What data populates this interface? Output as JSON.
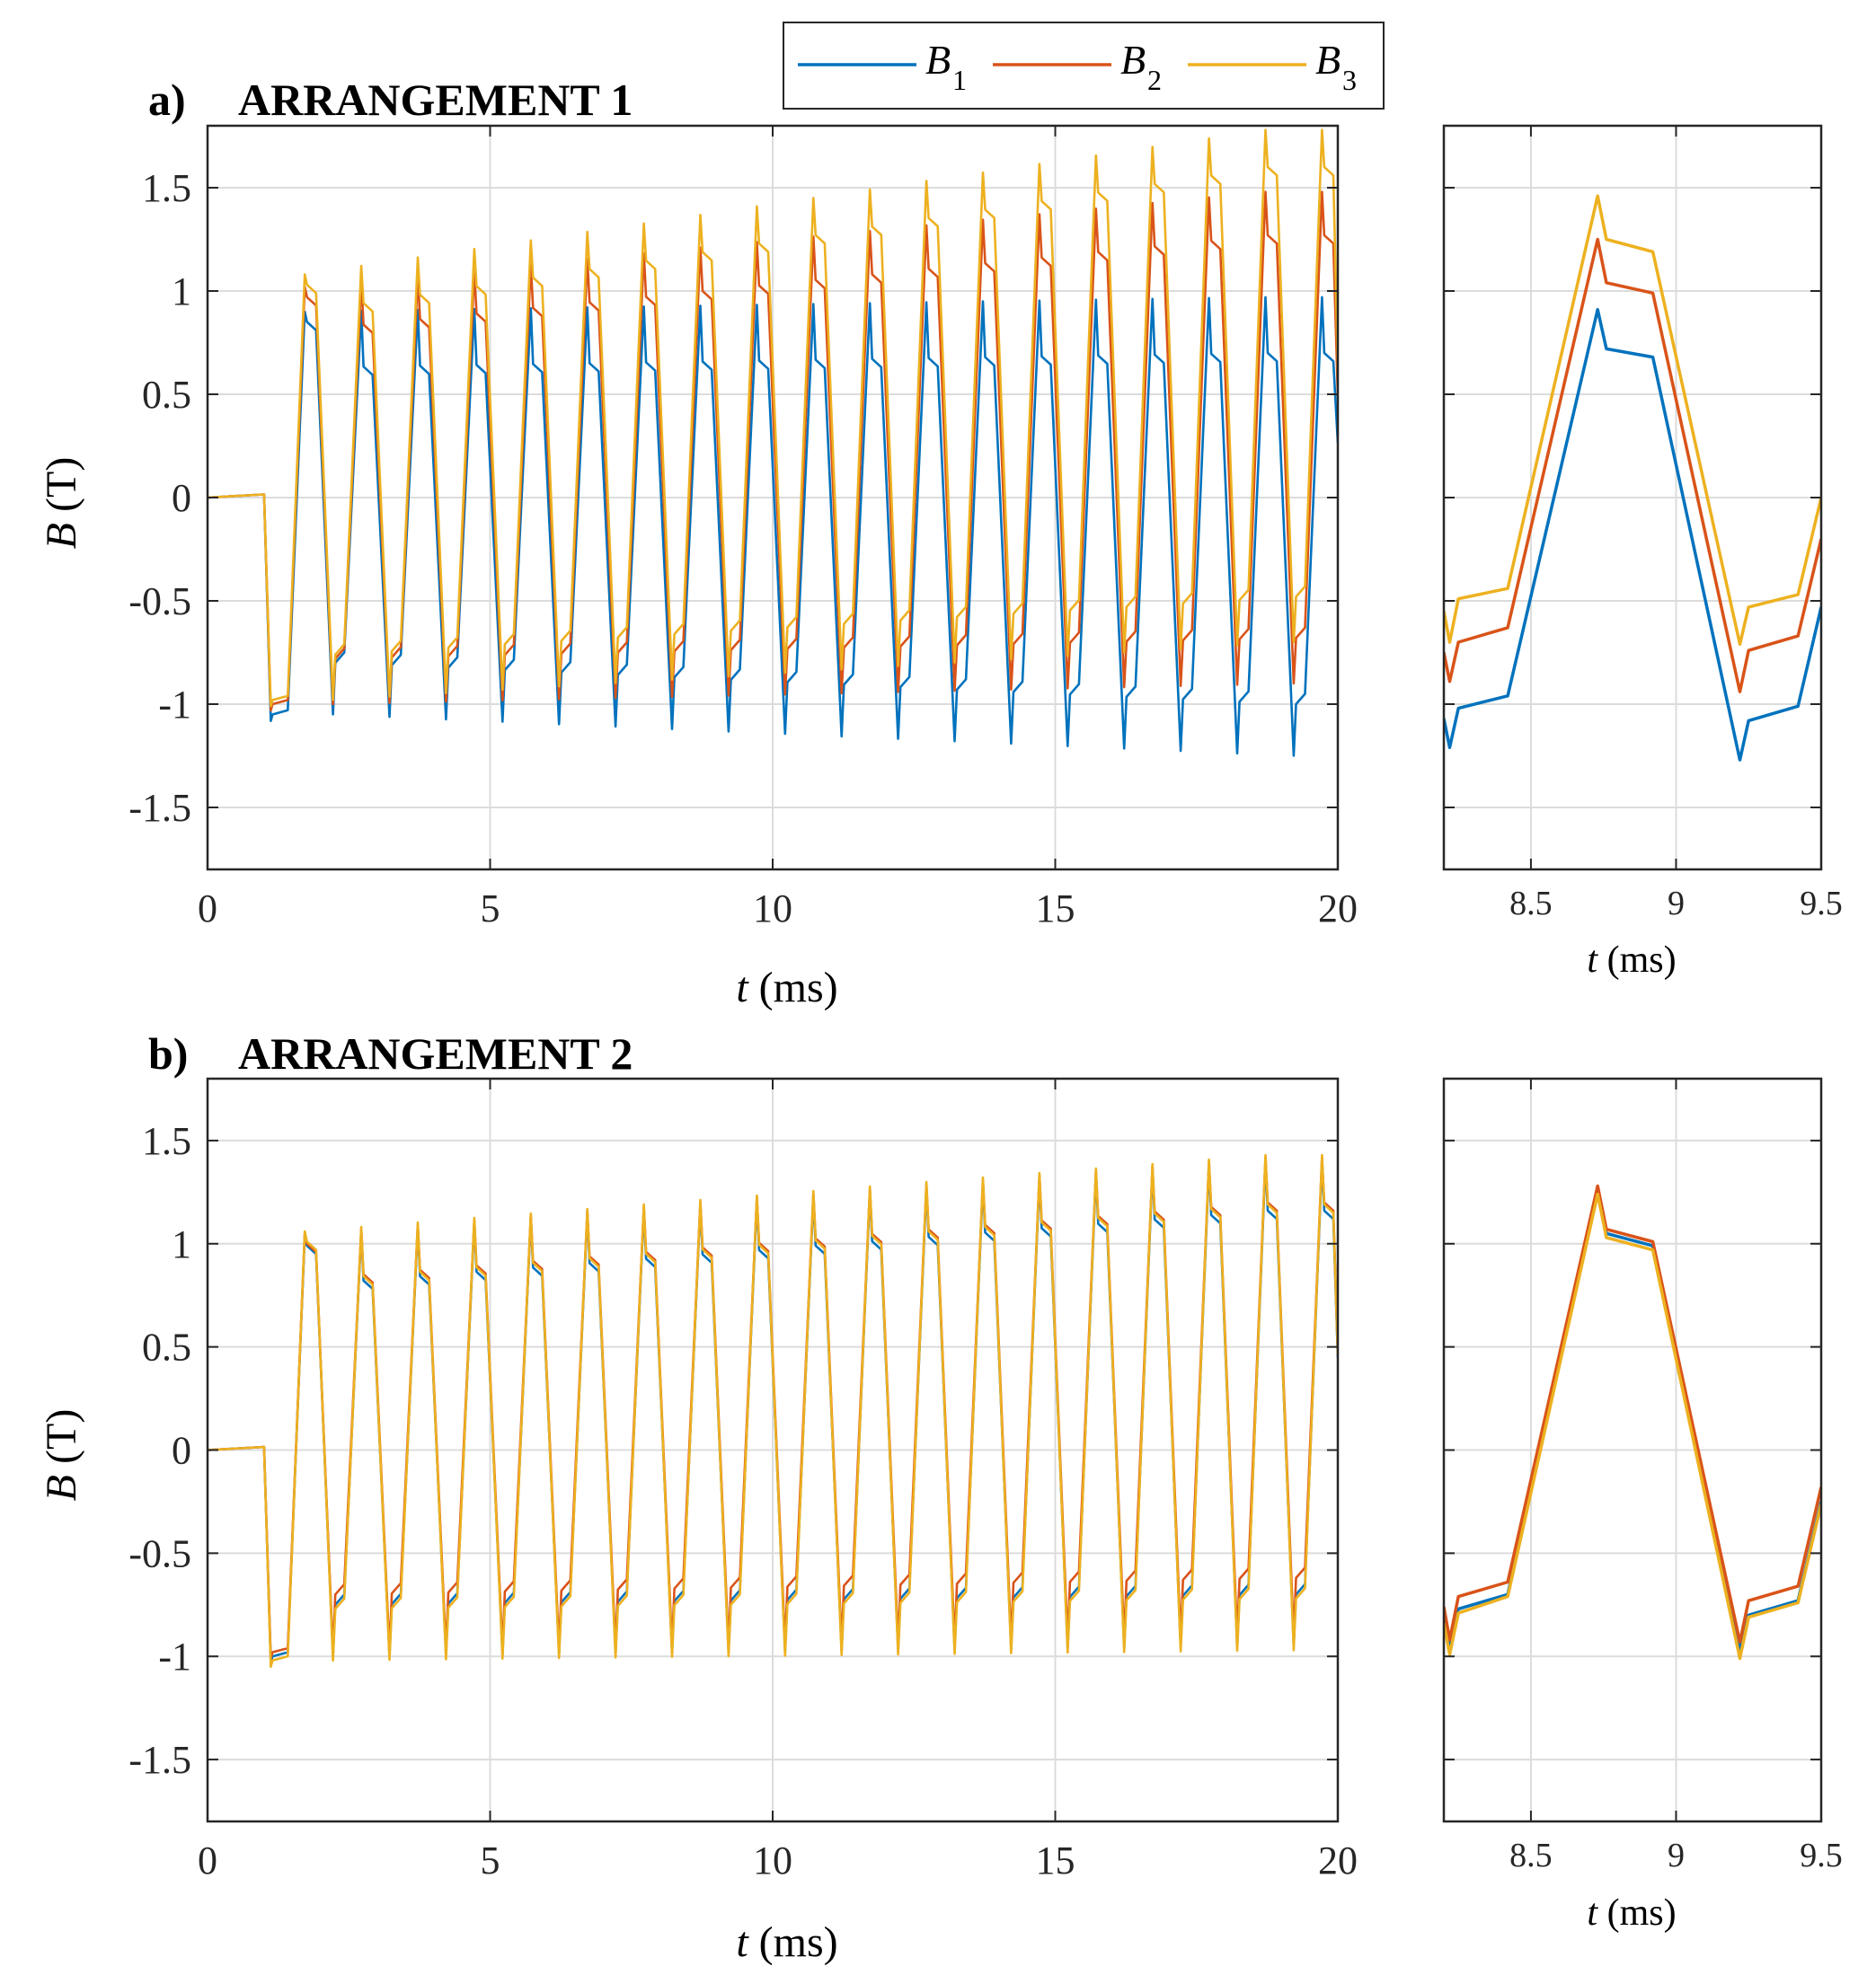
{
  "legend": {
    "entries": [
      {
        "symbol": "B",
        "subscript": "1",
        "color": "#0072BD"
      },
      {
        "symbol": "B",
        "subscript": "2",
        "color": "#D95319"
      },
      {
        "symbol": "B",
        "subscript": "3",
        "color": "#EDB120"
      }
    ]
  },
  "chart_data": [
    {
      "type": "line",
      "panel": "a-main",
      "title_prefix": "a)",
      "title": "ARRANGEMENT 1",
      "xlabel_var": "t",
      "xlabel_unit": " (ms)",
      "ylabel_var": "B",
      "ylabel_unit": " (T)",
      "xlim": [
        0,
        20
      ],
      "ylim": [
        -1.8,
        1.8
      ],
      "xticks": [
        0,
        5,
        10,
        15,
        20
      ],
      "xtick_labels": [
        "0",
        "5",
        "10",
        "15",
        "20"
      ],
      "yticks": [
        1.5,
        1,
        0.5,
        0,
        -0.5,
        -1,
        -1.5
      ],
      "ytick_labels": [
        "1.5",
        "1",
        "0.5",
        "0",
        "-0.5",
        "-1",
        "-1.5"
      ],
      "grid": true,
      "series_model": {
        "period_ms": 1.0,
        "first_rise_ms": 1.72,
        "pos_peak_start": [
          0.9,
          1.02,
          1.08
        ],
        "pos_peak_end": [
          0.97,
          1.48,
          1.78
        ],
        "neg_peak_start": [
          -1.05,
          -1.0,
          -0.98
        ],
        "neg_peak_end": [
          -1.25,
          -0.9,
          -0.7
        ],
        "pos_plateau_offset": [
          -0.27,
          -0.21,
          -0.18
        ],
        "neg_plateau_offset": [
          0.25,
          0.22,
          0.22
        ]
      },
      "series": [
        {
          "name": "B1",
          "color": "#0072BD"
        },
        {
          "name": "B2",
          "color": "#D95319"
        },
        {
          "name": "B3",
          "color": "#EDB120"
        }
      ]
    },
    {
      "type": "line",
      "panel": "a-zoom",
      "xlabel_var": "t",
      "xlabel_unit": " (ms)",
      "xlim": [
        8.2,
        9.5
      ],
      "ylim": [
        -1.8,
        1.8
      ],
      "xticks": [
        8.5,
        9,
        9.5
      ],
      "xtick_labels": [
        "8.5",
        "9",
        "9.5"
      ],
      "yticks": [
        1.5,
        1,
        0.5,
        0,
        -0.5,
        -1,
        -1.5
      ],
      "grid": true,
      "series": [
        {
          "name": "B1",
          "color": "#0072BD",
          "x": [
            8.2,
            8.22,
            8.25,
            8.42,
            8.73,
            8.76,
            8.92,
            9.22,
            9.25,
            9.42,
            9.5
          ],
          "y": [
            -1.07,
            -1.21,
            -1.02,
            -0.96,
            0.91,
            0.72,
            0.68,
            -1.27,
            -1.08,
            -1.01,
            -0.53
          ]
        },
        {
          "name": "B2",
          "color": "#D95319",
          "x": [
            8.2,
            8.22,
            8.25,
            8.42,
            8.73,
            8.76,
            8.92,
            9.22,
            9.25,
            9.42,
            9.5
          ],
          "y": [
            -0.75,
            -0.89,
            -0.7,
            -0.63,
            1.25,
            1.04,
            0.99,
            -0.94,
            -0.74,
            -0.67,
            -0.2
          ]
        },
        {
          "name": "B3",
          "color": "#EDB120",
          "x": [
            8.2,
            8.22,
            8.25,
            8.42,
            8.73,
            8.76,
            8.92,
            9.22,
            9.25,
            9.42,
            9.5
          ],
          "y": [
            -0.55,
            -0.7,
            -0.49,
            -0.44,
            1.46,
            1.25,
            1.19,
            -0.71,
            -0.53,
            -0.47,
            0.0
          ]
        }
      ]
    },
    {
      "type": "line",
      "panel": "b-main",
      "title_prefix": "b)",
      "title": "ARRANGEMENT 2",
      "xlabel_var": "t",
      "xlabel_unit": " (ms)",
      "ylabel_var": "B",
      "ylabel_unit": " (T)",
      "xlim": [
        0,
        20
      ],
      "ylim": [
        -1.8,
        1.8
      ],
      "xticks": [
        0,
        5,
        10,
        15,
        20
      ],
      "xtick_labels": [
        "0",
        "5",
        "10",
        "15",
        "20"
      ],
      "yticks": [
        1.5,
        1,
        0.5,
        0,
        -0.5,
        -1,
        -1.5
      ],
      "ytick_labels": [
        "1.5",
        "1",
        "0.5",
        "0",
        "-0.5",
        "-1",
        "-1.5"
      ],
      "grid": true,
      "series_model": {
        "period_ms": 1.0,
        "first_rise_ms": 1.72,
        "pos_peak_start": [
          1.04,
          1.05,
          1.06
        ],
        "pos_peak_end": [
          1.4,
          1.42,
          1.43
        ],
        "neg_peak_start": [
          -1.0,
          -0.98,
          -1.02
        ],
        "neg_peak_end": [
          -0.95,
          -0.9,
          -0.97
        ],
        "pos_plateau_offset": [
          -0.24,
          -0.22,
          -0.24
        ],
        "neg_plateau_offset": [
          0.25,
          0.28,
          0.25
        ]
      },
      "series": [
        {
          "name": "B1",
          "color": "#0072BD"
        },
        {
          "name": "B2",
          "color": "#D95319"
        },
        {
          "name": "B3",
          "color": "#EDB120"
        }
      ]
    },
    {
      "type": "line",
      "panel": "b-zoom",
      "xlabel_var": "t",
      "xlabel_unit": " (ms)",
      "xlim": [
        8.2,
        9.5
      ],
      "ylim": [
        -1.8,
        1.8
      ],
      "xticks": [
        8.5,
        9,
        9.5
      ],
      "xtick_labels": [
        "8.5",
        "9",
        "9.5"
      ],
      "yticks": [
        1.5,
        1,
        0.5,
        0,
        -0.5,
        -1,
        -1.5
      ],
      "grid": true,
      "series": [
        {
          "name": "B1",
          "color": "#0072BD",
          "x": [
            8.2,
            8.22,
            8.25,
            8.42,
            8.73,
            8.76,
            8.92,
            9.22,
            9.25,
            9.42,
            9.5
          ],
          "y": [
            -0.82,
            -0.96,
            -0.77,
            -0.7,
            1.26,
            1.05,
            0.99,
            -0.97,
            -0.8,
            -0.73,
            -0.25
          ]
        },
        {
          "name": "B2",
          "color": "#D95319",
          "x": [
            8.2,
            8.22,
            8.25,
            8.42,
            8.73,
            8.76,
            8.92,
            9.22,
            9.25,
            9.42,
            9.5
          ],
          "y": [
            -0.76,
            -0.92,
            -0.71,
            -0.64,
            1.28,
            1.07,
            1.01,
            -0.93,
            -0.73,
            -0.66,
            -0.18
          ]
        },
        {
          "name": "B3",
          "color": "#EDB120",
          "x": [
            8.2,
            8.22,
            8.25,
            8.42,
            8.73,
            8.76,
            8.92,
            9.22,
            9.25,
            9.42,
            9.5
          ],
          "y": [
            -0.84,
            -0.99,
            -0.79,
            -0.71,
            1.24,
            1.03,
            0.97,
            -1.01,
            -0.81,
            -0.74,
            -0.26
          ]
        }
      ]
    }
  ]
}
